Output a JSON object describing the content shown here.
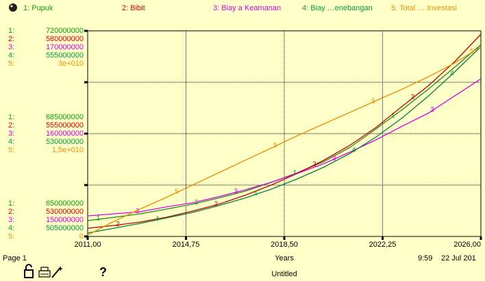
{
  "chart_data": {
    "type": "line",
    "x_label": "Years",
    "x": [
      2011,
      2012,
      2013,
      2014,
      2015,
      2016,
      2017,
      2018,
      2019,
      2020,
      2021,
      2022,
      2023,
      2024,
      2025,
      2026
    ],
    "xlim": [
      2011,
      2026
    ],
    "xticks": [
      {
        "value": 2011,
        "label": "2011,00"
      },
      {
        "value": 2014.75,
        "label": "2014,75"
      },
      {
        "value": 2018.5,
        "label": "2018,50"
      },
      {
        "value": 2022.25,
        "label": "2022,25"
      },
      {
        "value": 2026,
        "label": "2026,00"
      }
    ],
    "grid": true,
    "series": [
      {
        "name": "1: Pupuk",
        "key": "1:",
        "marker": "1",
        "color": "#10a010",
        "line_color": "#1a8c1a",
        "ylim": [
          650000000,
          720000000
        ],
        "yticks": [
          650000000,
          685000000,
          720000000
        ],
        "values": [
          655400000,
          656500000,
          657700000,
          659300000,
          661000000,
          663100000,
          665400000,
          668400000,
          671700000,
          675400000,
          680300000,
          686600000,
          693200000,
          700200000,
          707600000,
          715300000
        ]
      },
      {
        "name": "2: Bibit",
        "key": "2:",
        "marker": "2",
        "color": "#e00000",
        "line_color": "#c00000",
        "ylim": [
          530000000,
          580000000
        ],
        "yticks": [
          530000000,
          555000000,
          580000000
        ],
        "values": [
          532000000,
          532670000,
          533500000,
          534670000,
          536170000,
          537830000,
          540000000,
          542500000,
          545330000,
          548500000,
          552170000,
          556500000,
          561670000,
          566670000,
          572500000,
          579170000
        ]
      },
      {
        "name": "3: Biay a Keamanan",
        "key": "3:",
        "marker": "3",
        "color": "#e000e0",
        "line_color": "#e000e0",
        "ylim": [
          150000000,
          170000000
        ],
        "yticks": [
          150000000,
          160000000,
          170000000
        ],
        "values": [
          152000000,
          152200000,
          152400000,
          152870000,
          153270000,
          153870000,
          154530000,
          155270000,
          156130000,
          157070000,
          158200000,
          159400000,
          160730000,
          162000000,
          163670000,
          165330000
        ]
      },
      {
        "name": "4: Biay …enebangan",
        "key": "4:",
        "marker": "4",
        "color": "#00a040",
        "line_color": "#008040",
        "ylim": [
          505000000,
          555000000
        ],
        "yticks": [
          505000000,
          530000000,
          555000000
        ],
        "values": [
          505830000,
          507000000,
          508170000,
          509500000,
          510830000,
          512500000,
          514330000,
          516500000,
          519000000,
          521830000,
          525170000,
          529170000,
          533830000,
          539170000,
          545000000,
          551170000
        ]
      },
      {
        "name": "5: Total … Investasi",
        "key": "5:",
        "marker": "5",
        "color": "#f09000",
        "line_color": "#f08c00",
        "ylim": [
          0,
          30000000000
        ],
        "yticks": [
          0,
          {
            "value": 15000000000,
            "label": "1,5e+010"
          },
          {
            "value": 30000000000,
            "label": "3e+010"
          }
        ],
        "values": [
          200000000,
          2200000000,
          4000000000,
          5700000000,
          7500000000,
          9300000000,
          11100000000,
          12900000000,
          14700000000,
          16400000000,
          18100000000,
          19800000000,
          21500000000,
          23300000000,
          25300000000,
          27700000000
        ]
      }
    ],
    "footer": {
      "page": "Page 1",
      "time": "9:59",
      "date": "22 Jul 201",
      "document": "Untitled",
      "help": "?"
    }
  }
}
